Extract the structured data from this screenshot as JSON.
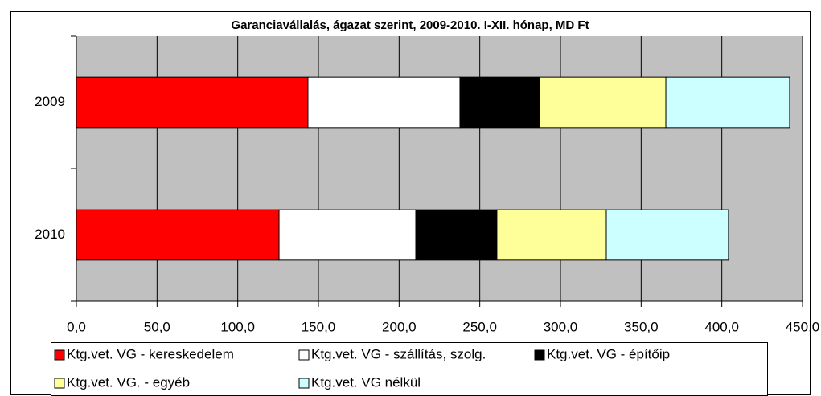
{
  "chart_data": {
    "type": "stacked-barh",
    "title": "Garanciavállalás, ágazat szerint, 2009-2010. I-XII. hónap, MD Ft",
    "categories": [
      "2009",
      "2010"
    ],
    "series": [
      {
        "name": "Ktg.vet. VG - kereskedelem",
        "color": "#ff0000",
        "values": [
          143.5,
          125.6
        ]
      },
      {
        "name": "Ktg.vet. VG - szállítás, szolg.",
        "color": "#ffffff",
        "values": [
          94.2,
          84.7
        ]
      },
      {
        "name": "Ktg.vet. VG - építőip",
        "color": "#000000",
        "values": [
          49.3,
          50.3
        ]
      },
      {
        "name": "Ktg.vet. VG. - egyéb",
        "color": "#ffff99",
        "values": [
          78.3,
          67.8
        ]
      },
      {
        "name": "Ktg.vet. VG nélkül",
        "color": "#ccffff",
        "values": [
          76.7,
          75.7
        ]
      }
    ],
    "xlim": [
      0,
      450
    ],
    "xticks": [
      {
        "value": 0,
        "label": "0,0"
      },
      {
        "value": 50,
        "label": "50,0"
      },
      {
        "value": 100,
        "label": "100,0"
      },
      {
        "value": 150,
        "label": "150,0"
      },
      {
        "value": 200,
        "label": "200,0"
      },
      {
        "value": 250,
        "label": "250,0"
      },
      {
        "value": 300,
        "label": "300,0"
      },
      {
        "value": 350,
        "label": "350,0"
      },
      {
        "value": 400,
        "label": "400,0"
      },
      {
        "value": 450,
        "label": "450,0"
      }
    ],
    "grid": true
  }
}
